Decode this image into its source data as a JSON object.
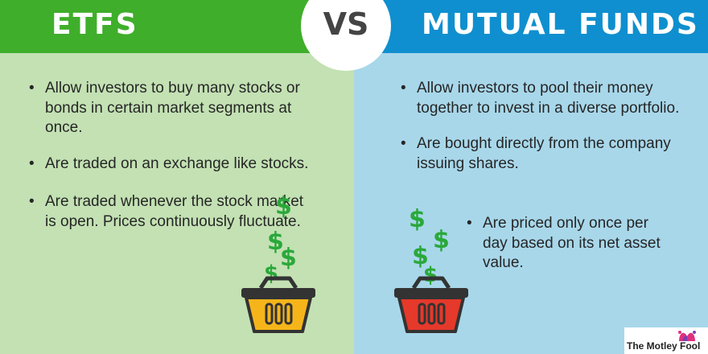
{
  "header": {
    "left_title": "ETFS",
    "vs_label": "VS",
    "right_title": "MUTUAL FUNDS"
  },
  "etfs": {
    "points": [
      "Allow investors to buy many stocks or bonds in certain market segments at once.",
      "Are traded on an exchange like stocks.",
      "Are traded whenever the stock market is open. Prices continuously fluctuate."
    ]
  },
  "mutual_funds": {
    "points": [
      "Allow investors to pool their money together to invest in a diverse portfolio.",
      "Are bought directly from the company issuing shares.",
      "Are priced only once per day based on its net asset value."
    ]
  },
  "brand": {
    "name": "The Motley Fool"
  },
  "colors": {
    "etf_banner": "#3fae2a",
    "etf_panel": "#c3e1b3",
    "mf_banner": "#0f8fcf",
    "mf_panel": "#a8d7ea",
    "dollar_green": "#2aa83a",
    "etf_basket": "#f5b51a",
    "mf_basket": "#e5392b"
  },
  "icons": [
    "dollar-sign-icon",
    "shopping-basket-icon",
    "jester-hat-icon"
  ]
}
